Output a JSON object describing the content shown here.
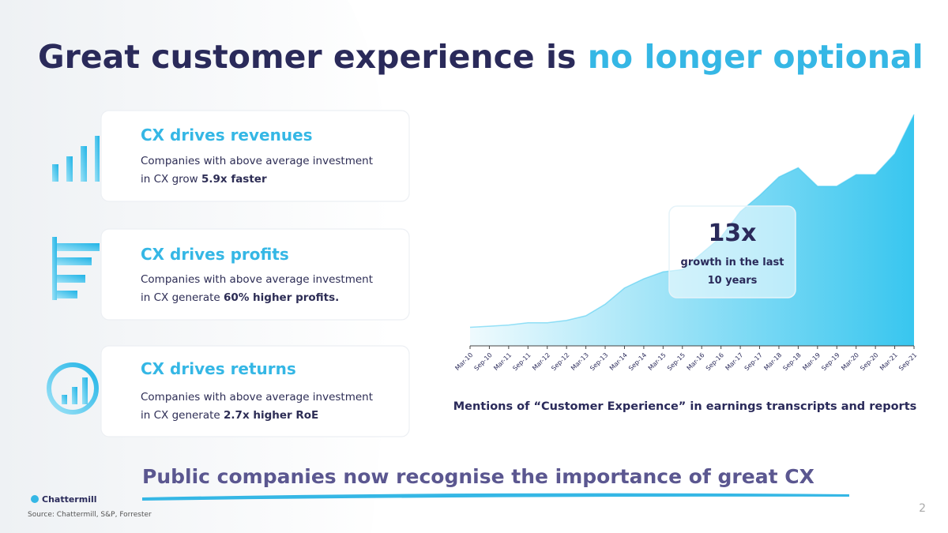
{
  "title": {
    "part1": "Great customer experience is",
    "part2": "no longer optional"
  },
  "cards": [
    {
      "heading": "CX drives revenues",
      "line1": "Companies with above average investment",
      "line2": "in CX grow",
      "bold": "5.9x faster"
    },
    {
      "heading": "CX drives profits",
      "line1": "Companies with above average investment",
      "line2": "in CX generate",
      "bold": "60% higher profits."
    },
    {
      "heading": "CX drives returns",
      "line1": "Companies with above average investment",
      "line2": "in CX generate",
      "bold": "2.7x higher RoE"
    }
  ],
  "badge": {
    "big": "13x",
    "line1": "growth in the last",
    "line2": "10 years"
  },
  "chart_data": {
    "type": "area",
    "title": "Mentions of “Customer Experience” in earnings transcripts and reports",
    "categories": [
      "Mar-10",
      "Sep-10",
      "Mar-11",
      "Sep-11",
      "Mar-12",
      "Sep-12",
      "Mar-13",
      "Sep-13",
      "Mar-14",
      "Sep-14",
      "Mar-15",
      "Sep-15",
      "Mar-16",
      "Sep-16",
      "Mar-17",
      "Sep-17",
      "Mar-18",
      "Sep-18",
      "Mar-19",
      "Sep-19",
      "Mar-20",
      "Sep-20",
      "Mar-21",
      "Sep-21"
    ],
    "values": [
      8,
      8.5,
      9,
      10,
      10,
      11,
      13,
      18,
      25,
      29,
      32,
      33,
      40,
      47,
      58,
      65,
      73,
      77,
      69,
      69,
      74,
      74,
      83,
      100
    ],
    "color": "#38c6ef",
    "ylim": [
      0,
      100
    ]
  },
  "tagline": "Public companies now recognise the importance of great CX",
  "logo": "Chattermill",
  "source": "Source: Chattermill, S&P, Forrester",
  "page": "2"
}
